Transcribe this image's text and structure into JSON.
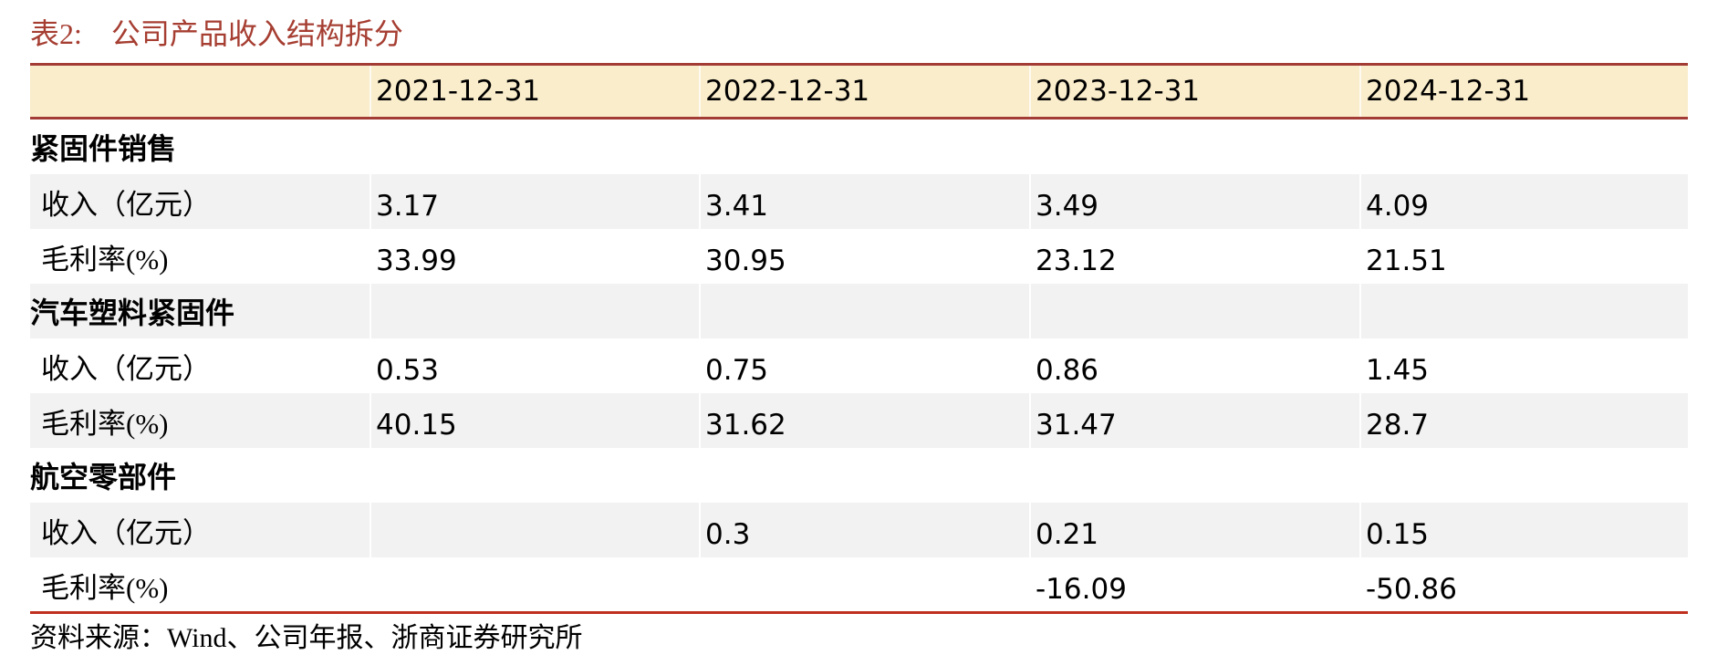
{
  "title": {
    "prefix": "表2:",
    "text": "公司产品收入结构拆分"
  },
  "table": {
    "columns": [
      "2021-12-31",
      "2022-12-31",
      "2023-12-31",
      "2024-12-31"
    ],
    "rows": [
      {
        "type": "section",
        "label": "紧固件销售",
        "values": [
          "",
          "",
          "",
          ""
        ]
      },
      {
        "type": "metric",
        "label": "收入（亿元）",
        "values": [
          "3.17",
          "3.41",
          "3.49",
          "4.09"
        ]
      },
      {
        "type": "metric",
        "label": "毛利率(%)",
        "values": [
          "33.99",
          "30.95",
          "23.12",
          "21.51"
        ]
      },
      {
        "type": "section",
        "label": "汽车塑料紧固件",
        "values": [
          "",
          "",
          "",
          ""
        ]
      },
      {
        "type": "metric",
        "label": "收入（亿元）",
        "values": [
          "0.53",
          "0.75",
          "0.86",
          "1.45"
        ]
      },
      {
        "type": "metric",
        "label": "毛利率(%)",
        "values": [
          "40.15",
          "31.62",
          "31.47",
          "28.7"
        ]
      },
      {
        "type": "section",
        "label": "航空零部件",
        "values": [
          "",
          "",
          "",
          ""
        ]
      },
      {
        "type": "metric",
        "label": "收入（亿元）",
        "values": [
          "",
          "0.3",
          "0.21",
          "0.15"
        ]
      },
      {
        "type": "metric",
        "label": "毛利率(%)",
        "values": [
          "",
          "",
          "-16.09",
          "-50.86"
        ]
      }
    ]
  },
  "footer": {
    "source": "资料来源：Wind、公司年报、浙商证券研究所"
  },
  "colors": {
    "title_red": "#a63e32",
    "header_background": "#faedcb",
    "header_border_red": "#a23c35",
    "shaded_row_gray": "#f2f2f2",
    "bottom_rule_red": "#c0301f",
    "text_black": "#000000"
  }
}
